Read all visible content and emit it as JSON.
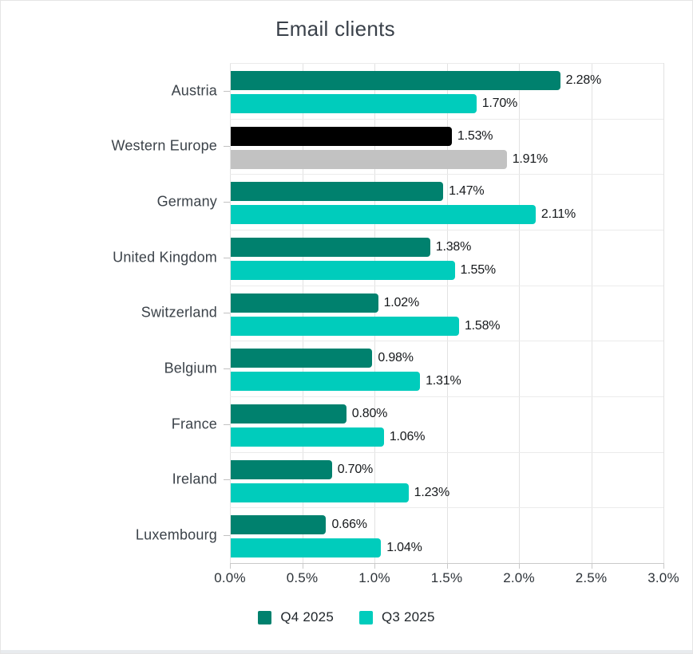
{
  "chart_data": {
    "type": "bar",
    "orientation": "horizontal",
    "title": "Email clients",
    "categories": [
      "Austria",
      "Western Europe",
      "Germany",
      "United Kingdom",
      "Switzerland",
      "Belgium",
      "France",
      "Ireland",
      "Luxembourg"
    ],
    "series": [
      {
        "name": "Q4 2025",
        "color": "#00816E",
        "values": [
          2.28,
          1.53,
          1.47,
          1.38,
          1.02,
          0.98,
          0.8,
          0.7,
          0.66
        ],
        "labels": [
          "2.28%",
          "1.53%",
          "1.47%",
          "1.38%",
          "1.02%",
          "0.98%",
          "0.80%",
          "0.70%",
          "0.66%"
        ]
      },
      {
        "name": "Q3 2025",
        "color": "#00CCBC",
        "values": [
          1.7,
          1.91,
          2.11,
          1.55,
          1.58,
          1.31,
          1.06,
          1.23,
          1.04
        ],
        "labels": [
          "1.70%",
          "1.91%",
          "2.11%",
          "1.55%",
          "1.58%",
          "1.31%",
          "1.06%",
          "1.23%",
          "1.04%"
        ]
      }
    ],
    "bar_color_overrides": {
      "Western Europe": {
        "Q4 2025": "#000000",
        "Q3 2025": "#C2C2C2"
      }
    },
    "xlim": [
      0,
      3.0
    ],
    "x_ticks": [
      "0.0%",
      "0.5%",
      "1.0%",
      "1.5%",
      "2.0%",
      "2.5%",
      "3.0%"
    ],
    "x_tick_values": [
      0,
      0.5,
      1.0,
      1.5,
      2.0,
      2.5,
      3.0
    ],
    "grid": "vertical-and-category-separators",
    "legend_position": "bottom",
    "value_labels": "outside-end"
  }
}
